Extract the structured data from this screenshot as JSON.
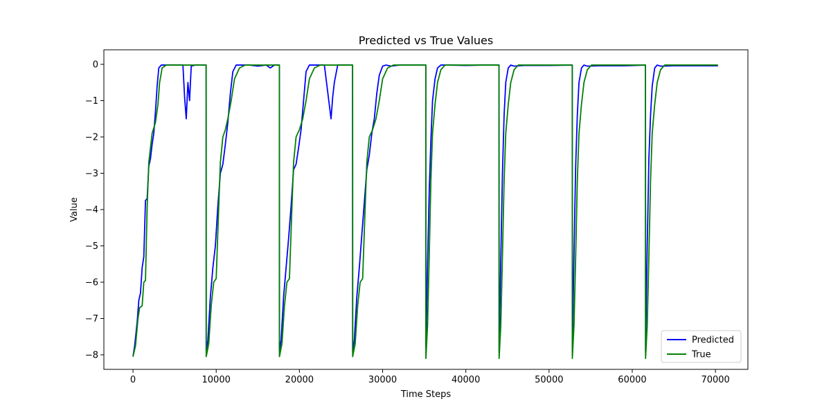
{
  "chart_data": {
    "type": "line",
    "title": "Predicted vs True Values",
    "xlabel": "Time Steps",
    "ylabel": "Value",
    "xlim": [
      -3500,
      73900
    ],
    "ylim": [
      -8.4,
      0.4
    ],
    "x_ticks": [
      0,
      10000,
      20000,
      30000,
      40000,
      50000,
      60000,
      70000
    ],
    "x_tick_labels": [
      "0",
      "10000",
      "20000",
      "30000",
      "40000",
      "50000",
      "60000",
      "70000"
    ],
    "y_ticks": [
      0,
      -1,
      -2,
      -3,
      -4,
      -5,
      -6,
      -7,
      -8
    ],
    "y_tick_labels": [
      "0",
      "−1",
      "−2",
      "−3",
      "−4",
      "−5",
      "−6",
      "−7",
      "−8"
    ],
    "grid": false,
    "legend_position": "lower right",
    "series": [
      {
        "name": "Predicted",
        "color": "#0000ff",
        "x": [
          0,
          200,
          500,
          700,
          900,
          1100,
          1300,
          1500,
          1700,
          1900,
          2100,
          2300,
          2500,
          2700,
          2900,
          3100,
          3400,
          4000,
          5000,
          6000,
          6200,
          6400,
          6600,
          6800,
          7000,
          7500,
          8000,
          8790,
          8800,
          9000,
          9300,
          9600,
          9900,
          10200,
          10500,
          10800,
          11100,
          11400,
          11700,
          12000,
          12400,
          13000,
          14000,
          15000,
          16000,
          16500,
          17000,
          17590,
          17600,
          17800,
          18100,
          18400,
          18700,
          19000,
          19300,
          19600,
          19900,
          20200,
          20500,
          20800,
          21200,
          22000,
          23000,
          23800,
          24000,
          24200,
          24600,
          25000,
          26000,
          26390,
          26400,
          26600,
          26900,
          27200,
          27500,
          27800,
          28100,
          28400,
          28700,
          29000,
          29300,
          29600,
          30000,
          30400,
          31000,
          32000,
          33000,
          34000,
          35190,
          35200,
          35400,
          35600,
          35800,
          36000,
          36300,
          36600,
          37000,
          38000,
          40000,
          42000,
          43990,
          44000,
          44200,
          44400,
          44600,
          44800,
          45100,
          45400,
          45800,
          47000,
          50000,
          52790,
          52800,
          53000,
          53200,
          53400,
          53600,
          53900,
          54200,
          54600,
          56000,
          59000,
          61590,
          61600,
          61800,
          62000,
          62200,
          62400,
          62700,
          63000,
          63400,
          65000,
          68000,
          70300
        ],
        "y": [
          -8.05,
          -7.75,
          -7.1,
          -6.5,
          -6.3,
          -5.6,
          -5.3,
          -3.75,
          -3.7,
          -2.8,
          -2.6,
          -2.2,
          -1.9,
          -1.3,
          -0.6,
          -0.1,
          -0.02,
          -0.02,
          -0.02,
          -0.02,
          -0.9,
          -1.5,
          -0.5,
          -1.0,
          -0.05,
          -0.02,
          -0.02,
          -0.02,
          -7.9,
          -7.6,
          -6.4,
          -5.6,
          -5.0,
          -3.9,
          -3.0,
          -2.75,
          -2.2,
          -1.6,
          -0.8,
          -0.2,
          -0.02,
          -0.02,
          -0.02,
          -0.05,
          -0.02,
          -0.1,
          -0.02,
          -0.02,
          -7.9,
          -7.6,
          -6.4,
          -5.6,
          -4.8,
          -3.9,
          -2.9,
          -2.75,
          -2.3,
          -1.8,
          -1.0,
          -0.2,
          -0.02,
          -0.02,
          -0.02,
          -1.5,
          -0.9,
          -0.5,
          -0.02,
          -0.02,
          -0.02,
          -0.02,
          -7.9,
          -7.6,
          -6.4,
          -5.6,
          -4.7,
          -3.8,
          -2.9,
          -2.5,
          -1.9,
          -1.5,
          -0.8,
          -0.3,
          -0.05,
          -0.02,
          -0.05,
          -0.02,
          -0.02,
          -0.02,
          -0.02,
          -7.8,
          -5.5,
          -3.5,
          -2.1,
          -1.0,
          -0.4,
          -0.1,
          -0.02,
          -0.02,
          -0.03,
          -0.02,
          -0.02,
          -7.9,
          -5.4,
          -3.0,
          -1.4,
          -0.5,
          -0.1,
          -0.02,
          -0.05,
          -0.03,
          -0.03,
          -0.02,
          -7.9,
          -5.2,
          -2.8,
          -1.4,
          -0.5,
          -0.1,
          -0.02,
          -0.05,
          -0.04,
          -0.04,
          -0.02,
          -7.9,
          -5.0,
          -2.6,
          -1.4,
          -0.6,
          -0.1,
          -0.02,
          -0.05,
          -0.04,
          -0.04,
          -0.04
        ]
      },
      {
        "name": "True",
        "color": "#008000",
        "x": [
          0,
          300,
          600,
          800,
          1100,
          1300,
          1500,
          1700,
          1900,
          2300,
          2700,
          3000,
          3200,
          3500,
          4000,
          6000,
          8790,
          8800,
          9100,
          9400,
          9700,
          10000,
          10300,
          10500,
          10800,
          11100,
          11400,
          11800,
          12200,
          12800,
          13500,
          15000,
          17590,
          17600,
          17900,
          18200,
          18500,
          18800,
          19100,
          19300,
          19600,
          20000,
          20400,
          20800,
          21200,
          21800,
          22500,
          24000,
          26390,
          26400,
          26700,
          27000,
          27300,
          27600,
          27900,
          28100,
          28400,
          28800,
          29200,
          29600,
          30000,
          30600,
          31300,
          33000,
          35190,
          35200,
          35400,
          35600,
          35800,
          36000,
          36300,
          36600,
          37000,
          37500,
          40000,
          43990,
          44000,
          44200,
          44400,
          44600,
          44800,
          45100,
          45400,
          45800,
          46300,
          49000,
          52790,
          52800,
          53000,
          53200,
          53400,
          53600,
          53900,
          54200,
          54600,
          55100,
          58000,
          61590,
          61600,
          61800,
          62000,
          62200,
          62400,
          62700,
          63000,
          63400,
          63900,
          67000,
          70300
        ],
        "y": [
          -8.05,
          -7.75,
          -7.0,
          -6.7,
          -6.65,
          -6.0,
          -5.95,
          -3.95,
          -2.7,
          -1.9,
          -1.6,
          -1.1,
          -0.5,
          -0.1,
          -0.02,
          -0.02,
          -0.02,
          -8.05,
          -7.7,
          -6.65,
          -6.0,
          -5.9,
          -3.95,
          -2.7,
          -2.0,
          -1.8,
          -1.5,
          -1.0,
          -0.4,
          -0.1,
          -0.02,
          -0.02,
          -0.02,
          -8.05,
          -7.7,
          -6.65,
          -6.0,
          -5.9,
          -3.95,
          -2.7,
          -2.0,
          -1.8,
          -1.5,
          -1.0,
          -0.4,
          -0.1,
          -0.02,
          -0.02,
          -0.02,
          -8.05,
          -7.7,
          -6.65,
          -6.0,
          -5.9,
          -3.95,
          -2.7,
          -2.0,
          -1.8,
          -1.5,
          -1.0,
          -0.4,
          -0.1,
          -0.02,
          -0.02,
          -0.02,
          -8.1,
          -7.2,
          -5.3,
          -3.2,
          -1.9,
          -1.1,
          -0.5,
          -0.15,
          -0.02,
          -0.02,
          -0.02,
          -8.1,
          -7.2,
          -5.3,
          -3.2,
          -1.9,
          -1.1,
          -0.5,
          -0.15,
          -0.02,
          -0.02,
          -0.02,
          -8.1,
          -7.2,
          -5.3,
          -3.2,
          -1.9,
          -1.1,
          -0.5,
          -0.15,
          -0.02,
          -0.02,
          -0.02,
          -8.1,
          -7.2,
          -5.3,
          -3.2,
          -1.9,
          -1.1,
          -0.5,
          -0.15,
          -0.02,
          -0.02,
          -0.02
        ]
      }
    ]
  }
}
